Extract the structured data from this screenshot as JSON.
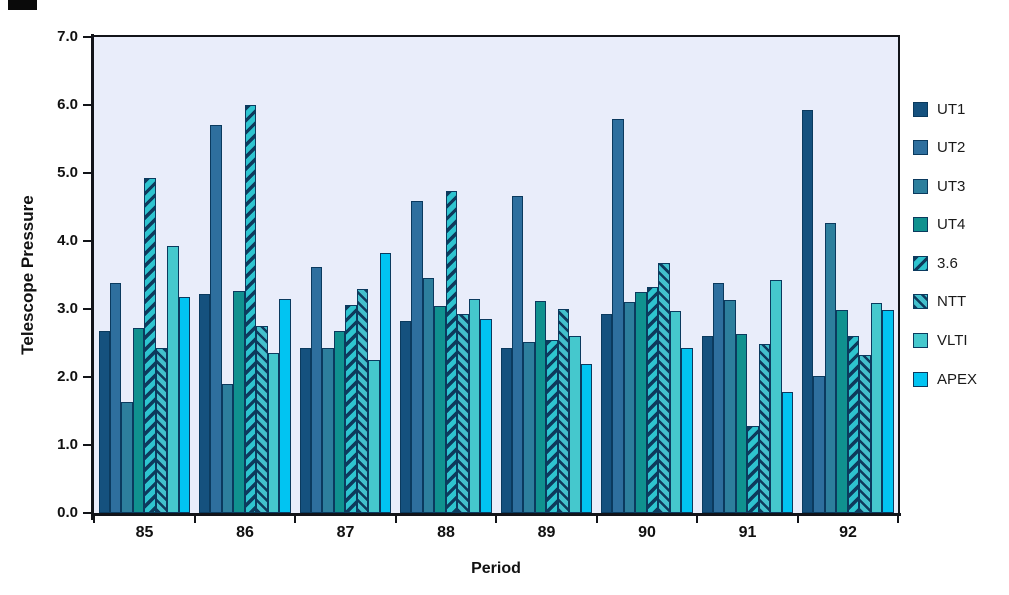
{
  "artifact_note": "small dark cropped element at top-left corner",
  "chart_data": {
    "type": "bar",
    "title": "",
    "xlabel": "Period",
    "ylabel": "Telescope Pressure",
    "categories": [
      "85",
      "86",
      "87",
      "88",
      "89",
      "90",
      "91",
      "92"
    ],
    "series": [
      {
        "name": "UT1",
        "style": "solid",
        "fill": "#15517E",
        "values": [
          2.67,
          3.22,
          2.42,
          2.82,
          2.42,
          2.93,
          2.6,
          5.93
        ]
      },
      {
        "name": "UT2",
        "style": "solid",
        "fill": "#2E6F9E",
        "values": [
          3.38,
          5.7,
          3.62,
          4.59,
          4.66,
          5.8,
          3.38,
          2.02
        ]
      },
      {
        "name": "UT3",
        "style": "solid",
        "fill": "#2D7F9D",
        "values": [
          1.63,
          1.89,
          2.42,
          3.46,
          2.51,
          3.1,
          3.13,
          4.26
        ]
      },
      {
        "name": "UT4",
        "style": "solid",
        "fill": "#10918F",
        "values": [
          2.72,
          3.26,
          2.67,
          3.05,
          3.12,
          3.25,
          2.63,
          2.99
        ]
      },
      {
        "name": "3.6",
        "style": "stripes-forward",
        "fill": "#2EC4CF",
        "stripe": "#0E3A5C",
        "values": [
          4.93,
          6.0,
          3.06,
          4.74,
          2.55,
          3.33,
          1.28,
          2.6
        ]
      },
      {
        "name": "NTT",
        "style": "stripes-backward",
        "fill": "#43C0CC",
        "stripe": "#0E3A5C",
        "values": [
          2.43,
          2.75,
          3.29,
          2.92,
          3.0,
          3.67,
          2.48,
          2.33
        ]
      },
      {
        "name": "VLTI",
        "style": "solid",
        "fill": "#45C8CD",
        "values": [
          3.92,
          2.36,
          2.25,
          3.15,
          2.6,
          2.97,
          3.43,
          3.09
        ]
      },
      {
        "name": "APEX",
        "style": "solid",
        "fill": "#01C4F2",
        "values": [
          3.18,
          3.14,
          3.83,
          2.85,
          2.19,
          2.43,
          1.78,
          2.98
        ]
      }
    ],
    "ylim": [
      0,
      7
    ],
    "ytick_labels": [
      "0.0",
      "1.0",
      "2.0",
      "3.0",
      "4.0",
      "5.0",
      "6.0",
      "7.0"
    ],
    "grid": false,
    "legend_position": "right",
    "plot_bg": "#E9EDFA",
    "bar_border": "#0B3A5E"
  }
}
